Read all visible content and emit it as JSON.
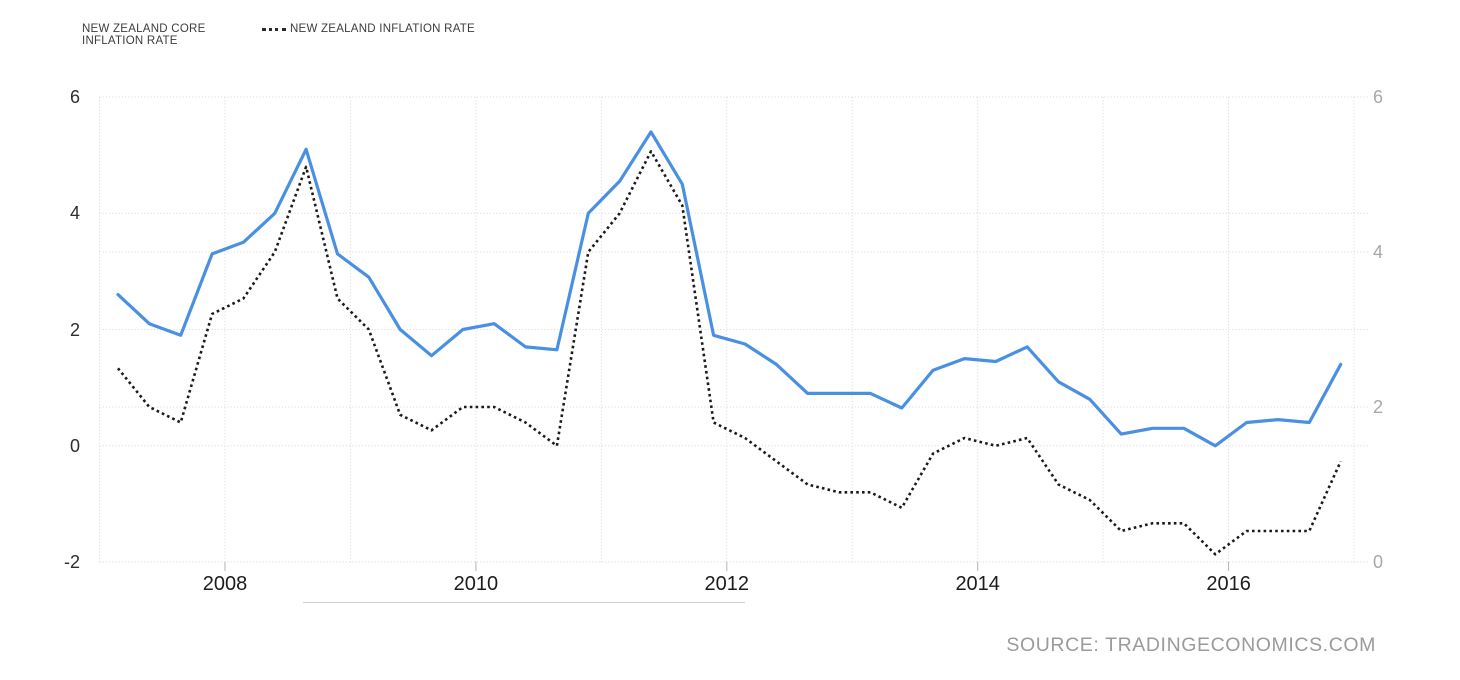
{
  "legend": {
    "items": [
      {
        "label": "NEW ZEALAND CORE INFLATION RATE",
        "marker": "solid-line",
        "color": "#4a90e2"
      },
      {
        "label": "NEW ZEALAND INFLATION RATE",
        "marker": "dotted-line",
        "color": "#1a1a1a"
      }
    ]
  },
  "source_text": "SOURCE: TRADINGECONOMICS.COM",
  "colors": {
    "core_line": "#4a90e2",
    "inflation_line": "#1a1a1a",
    "gridline": "#d8d8d8",
    "left_axis_label": "#2e2e2e",
    "right_axis_label": "#a8a8a8",
    "x_axis_label": "#1c1c1c",
    "source": "#9b9b9b"
  },
  "chart_data": {
    "type": "line",
    "title": "",
    "frequency": "quarterly",
    "grid": true,
    "legend_position": "top-left",
    "x_tick_labels": [
      "2008",
      "2010",
      "2012",
      "2014",
      "2016"
    ],
    "x_gridline_years": [
      2007,
      2008,
      2009,
      2010,
      2011,
      2012,
      2013,
      2014,
      2015,
      2016,
      2017
    ],
    "left_axis": {
      "min": -2,
      "max": 6,
      "ticks": [
        6,
        4,
        2,
        0,
        -2
      ]
    },
    "right_axis": {
      "min": 0,
      "max": 6,
      "ticks": [
        6,
        4,
        2,
        0
      ]
    },
    "periods": [
      "2007 Q1",
      "2007 Q2",
      "2007 Q3",
      "2007 Q4",
      "2008 Q1",
      "2008 Q2",
      "2008 Q3",
      "2008 Q4",
      "2009 Q1",
      "2009 Q2",
      "2009 Q3",
      "2009 Q4",
      "2010 Q1",
      "2010 Q2",
      "2010 Q3",
      "2010 Q4",
      "2011 Q1",
      "2011 Q2",
      "2011 Q3",
      "2011 Q4",
      "2012 Q1",
      "2012 Q2",
      "2012 Q3",
      "2012 Q4",
      "2013 Q1",
      "2013 Q2",
      "2013 Q3",
      "2013 Q4",
      "2014 Q1",
      "2014 Q2",
      "2014 Q3",
      "2014 Q4",
      "2015 Q1",
      "2015 Q2",
      "2015 Q3",
      "2015 Q4",
      "2016 Q1",
      "2016 Q2",
      "2016 Q3",
      "2016 Q4"
    ],
    "series": [
      {
        "name": "NEW ZEALAND CORE INFLATION RATE",
        "axis": "left",
        "line_style": "solid",
        "color": "#4a90e2",
        "values": [
          2.6,
          2.1,
          1.9,
          3.3,
          3.5,
          4.0,
          5.1,
          3.3,
          2.9,
          2.0,
          1.55,
          2.0,
          2.1,
          1.7,
          1.65,
          4.0,
          4.55,
          5.4,
          4.5,
          1.9,
          1.75,
          1.4,
          0.9,
          0.9,
          0.9,
          0.65,
          1.3,
          1.5,
          1.45,
          1.7,
          1.1,
          0.8,
          0.2,
          0.3,
          0.3,
          0.0,
          0.4,
          0.45,
          0.4,
          1.4
        ]
      },
      {
        "name": "NEW ZEALAND INFLATION RATE",
        "axis": "right",
        "line_style": "dotted",
        "color": "#1a1a1a",
        "values": [
          2.5,
          2.0,
          1.8,
          3.2,
          3.4,
          4.0,
          5.1,
          3.4,
          3.0,
          1.9,
          1.7,
          2.0,
          2.0,
          1.8,
          1.5,
          4.0,
          4.5,
          5.3,
          4.6,
          1.8,
          1.6,
          1.3,
          1.0,
          0.9,
          0.9,
          0.7,
          1.4,
          1.6,
          1.5,
          1.6,
          1.0,
          0.8,
          0.4,
          0.5,
          0.5,
          0.1,
          0.4,
          0.4,
          0.4,
          1.3
        ]
      }
    ]
  }
}
